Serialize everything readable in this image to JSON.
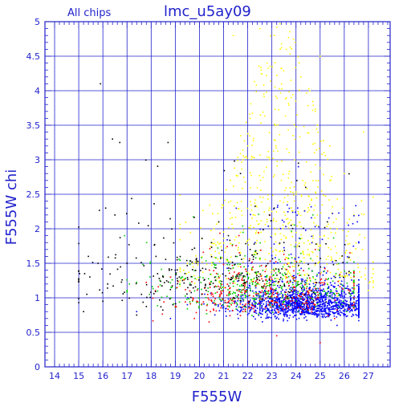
{
  "chart_data": {
    "type": "scatter",
    "title": "lmc_u5ay09",
    "subtitle": "All chips",
    "xlabel": "F555W",
    "ylabel": "F555W chi",
    "xlim": [
      13.6,
      27.9
    ],
    "ylim": [
      0,
      5
    ],
    "xticks": [
      14,
      15,
      16,
      17,
      18,
      19,
      20,
      21,
      22,
      23,
      24,
      25,
      26,
      27
    ],
    "yticks": [
      0,
      0.5,
      1,
      1.5,
      2,
      2.5,
      3,
      3.5,
      4,
      4.5,
      5
    ],
    "ytick_labels": [
      "0",
      "0.5",
      "1",
      "1.5",
      "2",
      "2.5",
      "3",
      "3.5",
      "4",
      "4.5",
      "5"
    ],
    "grid": true,
    "colors": {
      "axes": "#2222cc",
      "grid": "#2222cc",
      "text": "#2222cc"
    },
    "series": [
      {
        "color": "#ffff00",
        "points": [
          [
            22.5,
            4.9
          ],
          [
            23.1,
            4.8
          ],
          [
            23.6,
            4.6
          ],
          [
            24.2,
            4.2
          ],
          [
            22.8,
            4.4
          ],
          [
            23.4,
            4.1
          ],
          [
            24.8,
            3.7
          ],
          [
            22.1,
            3.6
          ],
          [
            25.4,
            3.2
          ],
          [
            21.8,
            3.0
          ],
          [
            26.0,
            2.8
          ],
          [
            24.0,
            2.5
          ],
          [
            22.9,
            2.3
          ],
          [
            25.7,
            2.0
          ],
          [
            23.5,
            1.9
          ],
          [
            20.6,
            2.0
          ],
          [
            21.3,
            2.4
          ],
          [
            24.7,
            2.7
          ],
          [
            26.4,
            2.2
          ],
          [
            22.0,
            3.2
          ],
          [
            23.8,
            3.9
          ],
          [
            25.0,
            4.5
          ],
          [
            21.4,
            4.8
          ],
          [
            26.8,
            3.4
          ],
          [
            24.5,
            1.7
          ],
          [
            25.9,
            1.6
          ],
          [
            26.7,
            1.3
          ],
          [
            23.0,
            1.4
          ]
        ],
        "cloud": {
          "count": 650,
          "x": [
            19.2,
            27.2
          ],
          "y_base": 1.2,
          "y_max": 5.0,
          "center": 23.4,
          "spread": 1.9
        }
      },
      {
        "color": "#0000ff",
        "points": [
          [
            24.5,
            0.9
          ],
          [
            25.2,
            0.8
          ],
          [
            23.6,
            0.9
          ],
          [
            22.8,
            1.0
          ],
          [
            21.7,
            0.8
          ],
          [
            20.9,
            0.95
          ],
          [
            26.0,
            0.75
          ],
          [
            24.0,
            1.3
          ],
          [
            23.1,
            1.5
          ],
          [
            22.3,
            1.8
          ],
          [
            24.1,
            2.9
          ],
          [
            23.5,
            2.1
          ],
          [
            19.5,
            0.9
          ],
          [
            18.8,
            0.7
          ],
          [
            17.4,
            0.8
          ],
          [
            25.7,
            0.6
          ]
        ],
        "cloud": {
          "count": 1450,
          "x": [
            18.3,
            26.6
          ],
          "y_base": 0.78,
          "y_spread": 0.18,
          "center": 24.5,
          "spread": 1.5
        }
      },
      {
        "color": "#00cc00",
        "points": [
          [
            22.2,
            1.2
          ],
          [
            23.0,
            1.0
          ],
          [
            24.3,
            1.1
          ],
          [
            21.4,
            1.3
          ],
          [
            20.7,
            0.9
          ],
          [
            25.5,
            1.0
          ],
          [
            26.1,
            0.8
          ],
          [
            19.8,
            1.1
          ],
          [
            18.8,
            1.3
          ],
          [
            17.1,
            1.2
          ],
          [
            16.9,
            1.9
          ],
          [
            24.7,
            2.2
          ]
        ],
        "cloud": {
          "count": 430,
          "x": [
            17.0,
            26.4
          ],
          "y_base": 0.92,
          "y_spread": 0.32,
          "center": 22.8,
          "spread": 2.2
        }
      },
      {
        "color": "#ff0000",
        "points": [
          [
            21.8,
            0.8
          ],
          [
            22.7,
            1.2
          ],
          [
            23.6,
            0.85
          ],
          [
            24.6,
            1.0
          ],
          [
            25.6,
            0.7
          ],
          [
            20.4,
            0.65
          ],
          [
            19.6,
            1.1
          ],
          [
            24.8,
            1.7
          ],
          [
            23.2,
            0.45
          ],
          [
            25.0,
            0.35
          ]
        ],
        "cloud": {
          "count": 330,
          "x": [
            17.3,
            26.4
          ],
          "y_base": 0.85,
          "y_spread": 0.3,
          "center": 22.6,
          "spread": 2.0
        }
      },
      {
        "color": "#000000",
        "points": [
          [
            15.9,
            4.1
          ],
          [
            16.4,
            3.3
          ],
          [
            16.7,
            3.25
          ],
          [
            18.7,
            3.25
          ],
          [
            16.5,
            2.2
          ],
          [
            15.4,
            1.6
          ],
          [
            15.8,
            1.5
          ],
          [
            15.2,
            0.8
          ],
          [
            16.0,
            0.95
          ],
          [
            16.2,
            1.2
          ],
          [
            17.0,
            1.5
          ],
          [
            17.6,
            1.05
          ],
          [
            18.2,
            1.6
          ],
          [
            18.5,
            1.3
          ],
          [
            19.3,
            1.25
          ],
          [
            20.1,
            1.05
          ],
          [
            21.7,
            2.8
          ],
          [
            23.1,
            2.3
          ],
          [
            23.8,
            2.05
          ],
          [
            24.4,
            2.6
          ],
          [
            22.9,
            2.2
          ],
          [
            25.3,
            2.1
          ],
          [
            21.2,
            1.9
          ],
          [
            20.8,
            2.1
          ],
          [
            24.1,
            2.95
          ],
          [
            17.4,
            0.75
          ],
          [
            18.9,
            0.9
          ],
          [
            19.0,
            1.4
          ],
          [
            19.7,
            1.7
          ],
          [
            20.5,
            1.8
          ],
          [
            21.5,
            1.6
          ],
          [
            22.1,
            1.7
          ],
          [
            23.5,
            1.8
          ],
          [
            24.8,
            1.5
          ]
        ],
        "cloud": {
          "count": 260,
          "x": [
            15.0,
            26.2
          ],
          "y_base": 1.0,
          "y_spread": 0.45,
          "center": 20.7,
          "spread": 3.0
        }
      }
    ]
  }
}
